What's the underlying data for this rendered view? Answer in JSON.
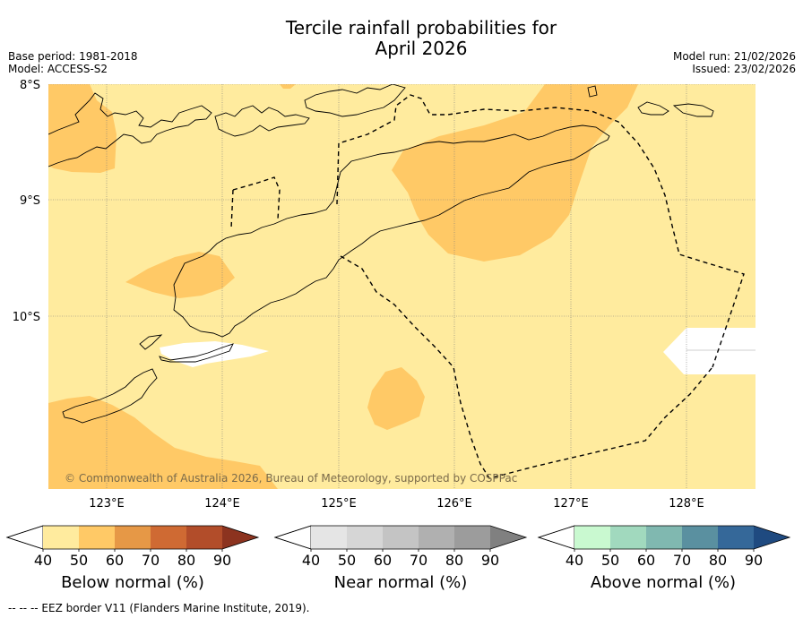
{
  "header": {
    "title_line1": "Tercile rainfall probabilities for",
    "title_line2": "April 2026",
    "base_period": "Base period: 1981-2018",
    "model": "Model: ACCESS-S2",
    "model_run": "Model run: 21/02/2026",
    "issued": "Issued: 23/02/2026"
  },
  "map": {
    "lat_labels": [
      "8°S",
      "9°S",
      "10°S"
    ],
    "lon_labels": [
      "123°E",
      "124°E",
      "125°E",
      "126°E",
      "127°E",
      "128°E"
    ],
    "copyright": "© Commonwealth of Australia 2026, Bureau of Meteorology, supported by COSPPac",
    "colors": {
      "ocean_40_50_below": "#ffeb9e",
      "below_50_60": "#ffc966",
      "no_data": "#ffffff",
      "coast": "#000000",
      "eez": "#000000"
    }
  },
  "colorbars": [
    {
      "title": "Below normal (%)",
      "ticks": [
        "40",
        "50",
        "60",
        "70",
        "80",
        "90"
      ],
      "colors": [
        "#ffeb9e",
        "#ffc966",
        "#e69846",
        "#cf6a33",
        "#b24d2a",
        "#8c331f"
      ]
    },
    {
      "title": "Near normal (%)",
      "ticks": [
        "40",
        "50",
        "60",
        "70",
        "80",
        "90"
      ],
      "colors": [
        "#e5e5e5",
        "#d6d6d6",
        "#c4c4c4",
        "#b0b0b0",
        "#9c9c9c",
        "#808080"
      ]
    },
    {
      "title": "Above normal (%)",
      "ticks": [
        "40",
        "50",
        "60",
        "70",
        "80",
        "90"
      ],
      "colors": [
        "#c9f9d0",
        "#a1d9be",
        "#80b8b0",
        "#5a90a0",
        "#356899",
        "#1f4a80"
      ]
    }
  ],
  "footnote": "-- -- -- EEZ border V11 (Flanders Marine Institute, 2019)."
}
